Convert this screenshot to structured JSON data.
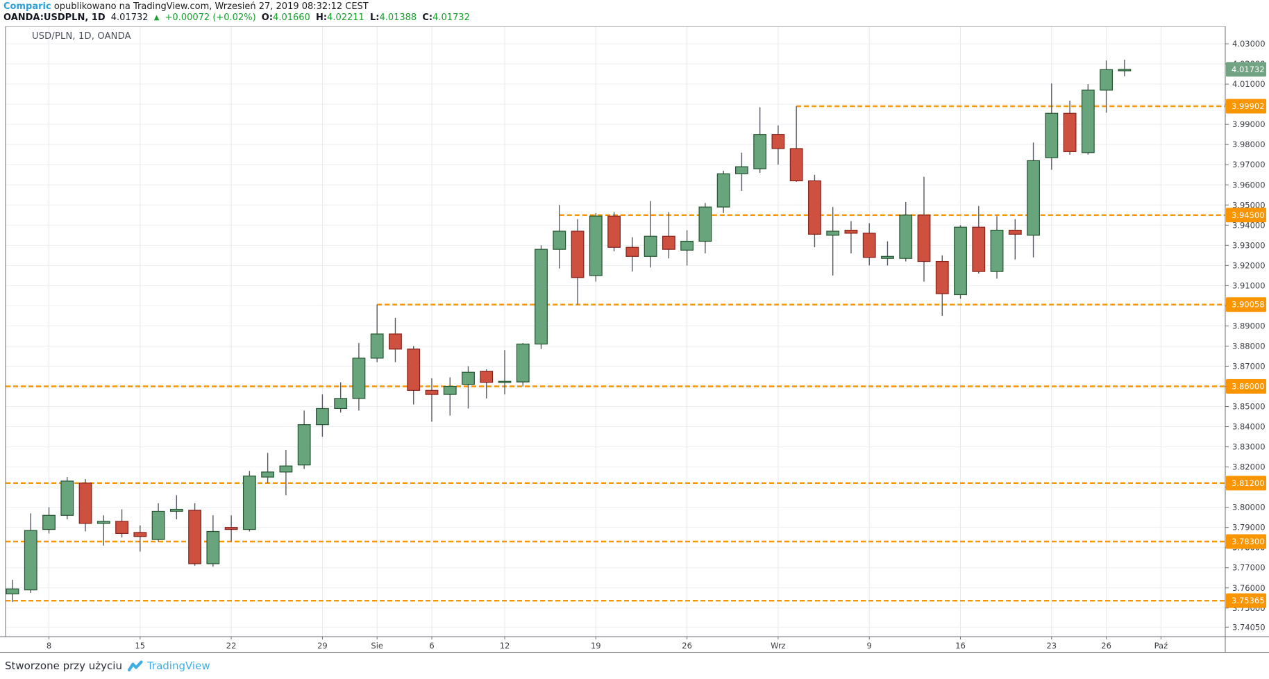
{
  "header": {
    "line1": {
      "publisher": "Comparic",
      "published_note": "opublikowano na TradingView.com, Wrzesień 27, 2019 08:32:12 CEST"
    },
    "line2": {
      "symbol": "OANDA:USDPLN, 1D",
      "last": "4.01732",
      "direction_icon": "▲",
      "change": "+0.00072 (+0.02%)",
      "o_label": "O:",
      "o": "4.01660",
      "h_label": "H:",
      "h": "4.02211",
      "l_label": "L:",
      "l": "4.01388",
      "c_label": "C:",
      "c": "4.01732"
    }
  },
  "chart": {
    "legend": "USD/PLN, 1D, OANDA"
  },
  "footer": {
    "created_with": "Stworzone przy użyciu",
    "brand": "TradingView"
  },
  "colors": {
    "up_fill": "#68a47c",
    "up_border": "#23532f",
    "down_fill": "#ce5140",
    "down_border": "#832019",
    "wick": "#565a62",
    "level_orange": "#f99500",
    "last_badge_green": "#72a383",
    "badge_text": "#ffffff",
    "grid": "#eceef1",
    "vgrid": "#e6e8ec",
    "frame": "#6b6e74",
    "axis_text": "#3a3d43",
    "link_blue": "#2d9fdc",
    "value_green": "#16a02c"
  },
  "chart_data": {
    "type": "candlestick",
    "title": "USD/PLN, 1D, OANDA",
    "symbol": "USD/PLN",
    "interval": "1D",
    "exchange": "OANDA",
    "ylim": [
      3.7358,
      4.0386
    ],
    "grid": true,
    "last_price": "4.01732",
    "price_ticks": [
      "4.03000",
      "4.02000",
      "4.01000",
      "4.00000",
      "3.99000",
      "3.98000",
      "3.97000",
      "3.96000",
      "3.95000",
      "3.94000",
      "3.93000",
      "3.92000",
      "3.91000",
      "3.90000",
      "3.89000",
      "3.88000",
      "3.87000",
      "3.86000",
      "3.85000",
      "3.84000",
      "3.83000",
      "3.82000",
      "3.81000",
      "3.80000",
      "3.79000",
      "3.78000",
      "3.77000",
      "3.76000",
      "3.75000",
      "3.74050"
    ],
    "x_labels": [
      {
        "text": "8",
        "i": 2
      },
      {
        "text": "15",
        "i": 7
      },
      {
        "text": "22",
        "i": 12
      },
      {
        "text": "29",
        "i": 17
      },
      {
        "text": "Sie",
        "i": 20
      },
      {
        "text": "6",
        "i": 23
      },
      {
        "text": "12",
        "i": 27
      },
      {
        "text": "19",
        "i": 32
      },
      {
        "text": "26",
        "i": 37
      },
      {
        "text": "Wrz",
        "i": 42
      },
      {
        "text": "9",
        "i": 47
      },
      {
        "text": "16",
        "i": 52
      },
      {
        "text": "23",
        "i": 57
      },
      {
        "text": "26",
        "i": 60
      },
      {
        "text": "Paź",
        "i": 63
      }
    ],
    "levels": [
      {
        "value": "3.99902",
        "price": 3.99902,
        "start_i": 43
      },
      {
        "value": "3.94500",
        "price": 3.945,
        "start_i": 30
      },
      {
        "value": "3.90058",
        "price": 3.90058,
        "start_i": 20
      },
      {
        "value": "3.86000",
        "price": 3.86,
        "start_i": null
      },
      {
        "value": "3.81200",
        "price": 3.812,
        "start_i": null
      },
      {
        "value": "3.78300",
        "price": 3.783,
        "start_i": null
      },
      {
        "value": "3.75365",
        "price": 3.75365,
        "start_i": null
      }
    ],
    "candles_ohlc": [
      [
        3.757,
        3.764,
        3.753,
        3.7595
      ],
      [
        3.759,
        3.797,
        3.7575,
        3.7885
      ],
      [
        3.789,
        3.8,
        3.787,
        3.796
      ],
      [
        3.796,
        3.815,
        3.794,
        3.813
      ],
      [
        3.812,
        3.814,
        3.788,
        3.792
      ],
      [
        3.792,
        3.796,
        3.781,
        3.793
      ],
      [
        3.793,
        3.799,
        3.785,
        3.787
      ],
      [
        3.7875,
        3.791,
        3.778,
        3.7855
      ],
      [
        3.784,
        3.802,
        3.783,
        3.798
      ],
      [
        3.798,
        3.806,
        3.794,
        3.799
      ],
      [
        3.7985,
        3.802,
        3.771,
        3.772
      ],
      [
        3.772,
        3.796,
        3.7705,
        3.788
      ],
      [
        3.79,
        3.796,
        3.783,
        3.789
      ],
      [
        3.789,
        3.818,
        3.788,
        3.8155
      ],
      [
        3.815,
        3.827,
        3.812,
        3.8175
      ],
      [
        3.8175,
        3.8285,
        3.806,
        3.8205
      ],
      [
        3.821,
        3.848,
        3.819,
        3.841
      ],
      [
        3.841,
        3.856,
        3.835,
        3.849
      ],
      [
        3.849,
        3.862,
        3.847,
        3.854
      ],
      [
        3.854,
        3.8815,
        3.848,
        3.874
      ],
      [
        3.874,
        3.9006,
        3.872,
        3.886
      ],
      [
        3.886,
        3.894,
        3.872,
        3.8785
      ],
      [
        3.8785,
        3.88,
        3.851,
        3.858
      ],
      [
        3.858,
        3.864,
        3.8425,
        3.856
      ],
      [
        3.856,
        3.8645,
        3.8455,
        3.86
      ],
      [
        3.861,
        3.87,
        3.849,
        3.867
      ],
      [
        3.8675,
        3.8685,
        3.854,
        3.862
      ],
      [
        3.862,
        3.878,
        3.856,
        3.8625
      ],
      [
        3.8622,
        3.8815,
        3.86,
        3.881
      ],
      [
        3.881,
        3.93,
        3.8785,
        3.928
      ],
      [
        3.928,
        3.95,
        3.9185,
        3.937
      ],
      [
        3.937,
        3.943,
        3.9006,
        3.914
      ],
      [
        3.915,
        3.946,
        3.912,
        3.9445
      ],
      [
        3.9445,
        3.9465,
        3.927,
        3.929
      ],
      [
        3.929,
        3.934,
        3.917,
        3.9245
      ],
      [
        3.9245,
        3.952,
        3.919,
        3.9345
      ],
      [
        3.9345,
        3.9465,
        3.9235,
        3.928
      ],
      [
        3.9276,
        3.9375,
        3.92,
        3.932
      ],
      [
        3.932,
        3.951,
        3.926,
        3.949
      ],
      [
        3.949,
        3.967,
        3.946,
        3.9655
      ],
      [
        3.9655,
        3.976,
        3.957,
        3.969
      ],
      [
        3.968,
        3.9985,
        3.966,
        3.985
      ],
      [
        3.985,
        3.9895,
        3.97,
        3.978
      ],
      [
        3.978,
        3.999,
        3.9615,
        3.962
      ],
      [
        3.962,
        3.965,
        3.929,
        3.9355
      ],
      [
        3.935,
        3.949,
        3.915,
        3.937
      ],
      [
        3.9375,
        3.942,
        3.926,
        3.936
      ],
      [
        3.936,
        3.941,
        3.92,
        3.924
      ],
      [
        3.9235,
        3.932,
        3.92,
        3.9245
      ],
      [
        3.9235,
        3.9515,
        3.922,
        3.945
      ],
      [
        3.945,
        3.964,
        3.912,
        3.922
      ],
      [
        3.922,
        3.925,
        3.895,
        3.906
      ],
      [
        3.9055,
        3.94,
        3.9035,
        3.939
      ],
      [
        3.939,
        3.9495,
        3.916,
        3.917
      ],
      [
        3.917,
        3.9445,
        3.9135,
        3.9375
      ],
      [
        3.9375,
        3.943,
        3.923,
        3.9355
      ],
      [
        3.935,
        3.981,
        3.924,
        3.972
      ],
      [
        3.9735,
        4.0103,
        3.9675,
        3.9955
      ],
      [
        3.9955,
        4.0018,
        3.975,
        3.9765
      ],
      [
        3.976,
        4.01,
        3.975,
        4.007
      ],
      [
        4.007,
        4.0217,
        3.9958,
        4.0172
      ],
      [
        4.0166,
        4.02211,
        4.01388,
        4.01732
      ]
    ]
  }
}
